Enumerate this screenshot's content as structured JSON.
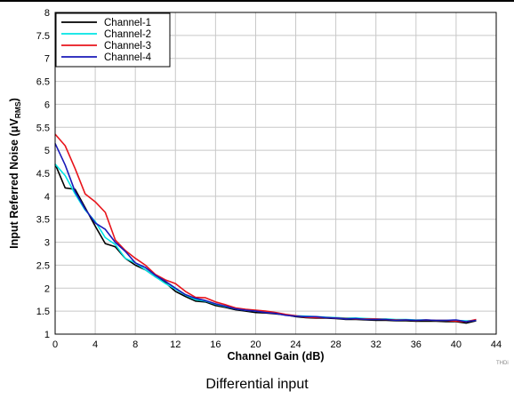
{
  "caption": "Differential input",
  "corner_tag": "THDi",
  "chart_data": {
    "type": "line",
    "title": "",
    "xlabel": "Channel Gain (dB)",
    "ylabel_main": "Input Referred Noise (μV",
    "ylabel_sub": "RMS",
    "ylabel_close": ")",
    "xlim": [
      0,
      44
    ],
    "ylim": [
      1,
      8
    ],
    "xticks": [
      0,
      4,
      8,
      12,
      16,
      20,
      24,
      28,
      32,
      36,
      40,
      44
    ],
    "yticks": [
      1,
      1.5,
      2,
      2.5,
      3,
      3.5,
      4,
      4.5,
      5,
      5.5,
      6,
      6.5,
      7,
      7.5,
      8
    ],
    "ytick_labels": [
      "1",
      "1.5",
      "2",
      "2.5",
      "3",
      "3.5",
      "4",
      "4.5",
      "5",
      "5.5",
      "6",
      "6.5",
      "7",
      "7.5",
      "8"
    ],
    "grid": true,
    "legend_position": "top-left",
    "x": [
      0,
      1,
      2,
      3,
      4,
      5,
      6,
      7,
      8,
      9,
      10,
      11,
      12,
      13,
      14,
      15,
      16,
      17,
      18,
      19,
      20,
      21,
      22,
      23,
      24,
      25,
      26,
      27,
      28,
      29,
      30,
      31,
      32,
      33,
      34,
      35,
      36,
      37,
      38,
      39,
      40,
      41,
      42
    ],
    "series": [
      {
        "name": "Channel-1",
        "color": "#000000",
        "values": [
          4.7,
          4.18,
          4.15,
          3.75,
          3.35,
          2.97,
          2.9,
          2.65,
          2.5,
          2.4,
          2.25,
          2.12,
          1.93,
          1.82,
          1.72,
          1.7,
          1.62,
          1.58,
          1.53,
          1.5,
          1.47,
          1.46,
          1.44,
          1.42,
          1.38,
          1.36,
          1.35,
          1.35,
          1.34,
          1.32,
          1.32,
          1.31,
          1.3,
          1.3,
          1.29,
          1.29,
          1.28,
          1.28,
          1.28,
          1.27,
          1.27,
          1.24,
          1.29
        ]
      },
      {
        "name": "Channel-2",
        "color": "#00e5e5",
        "values": [
          4.7,
          4.45,
          4.05,
          3.7,
          3.45,
          3.1,
          2.95,
          2.65,
          2.55,
          2.4,
          2.25,
          2.1,
          1.98,
          1.85,
          1.75,
          1.72,
          1.65,
          1.6,
          1.55,
          1.52,
          1.5,
          1.48,
          1.46,
          1.42,
          1.4,
          1.39,
          1.38,
          1.37,
          1.36,
          1.35,
          1.35,
          1.34,
          1.33,
          1.33,
          1.32,
          1.32,
          1.31,
          1.31,
          1.3,
          1.3,
          1.3,
          1.29,
          1.3
        ]
      },
      {
        "name": "Channel-3",
        "color": "#e8141b",
        "values": [
          5.35,
          5.1,
          4.6,
          4.05,
          3.88,
          3.65,
          3.05,
          2.82,
          2.65,
          2.5,
          2.3,
          2.18,
          2.1,
          1.93,
          1.8,
          1.79,
          1.7,
          1.64,
          1.57,
          1.54,
          1.52,
          1.5,
          1.47,
          1.43,
          1.4,
          1.37,
          1.36,
          1.36,
          1.35,
          1.34,
          1.33,
          1.33,
          1.33,
          1.32,
          1.31,
          1.31,
          1.3,
          1.31,
          1.3,
          1.3,
          1.28,
          1.27,
          1.32
        ]
      },
      {
        "name": "Channel-4",
        "color": "#1a1ab8",
        "values": [
          5.15,
          4.68,
          4.1,
          3.72,
          3.42,
          3.28,
          3.0,
          2.8,
          2.55,
          2.45,
          2.28,
          2.15,
          2.0,
          1.86,
          1.78,
          1.73,
          1.66,
          1.61,
          1.55,
          1.52,
          1.5,
          1.47,
          1.45,
          1.41,
          1.39,
          1.38,
          1.38,
          1.36,
          1.35,
          1.33,
          1.34,
          1.32,
          1.32,
          1.32,
          1.3,
          1.31,
          1.3,
          1.31,
          1.3,
          1.3,
          1.31,
          1.27,
          1.3
        ]
      }
    ]
  }
}
